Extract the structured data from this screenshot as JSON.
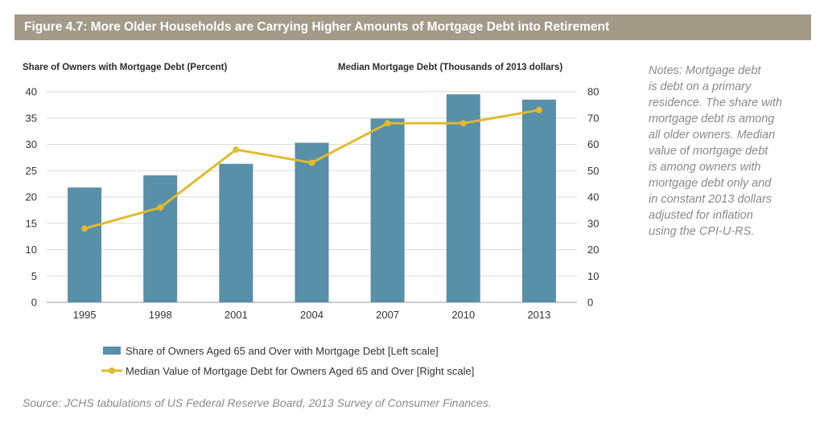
{
  "figure_title": "Figure 4.7: More Older Households are Carrying Higher Amounts of Mortgage Debt into Retirement",
  "left_axis_caption": "Share of  Owners with  Mortgage Debt (Percent)",
  "right_axis_caption": "Median Mortgage Debt (Thousands of 2013 dollars)",
  "notes": "Notes: Mortgage debt\nis debt on a primary\nresidence. The share with\nmortgage debt is among\nall older owners. Median\nvalue of mortgage debt\nis among owners with\nmortgage debt only and\nin constant 2013 dollars\nadjusted for inflation\nusing the CPI-U-RS.",
  "source": "Source: JCHS tabulations of US Federal Reserve Board, 2013 Survey of Consumer Finances.",
  "colors": {
    "bar": "#588fa9",
    "line": "#e0bb2d",
    "title_bg": "#a39a88"
  },
  "chart_data": {
    "type": "bar",
    "categories": [
      "1995",
      "1998",
      "2001",
      "2004",
      "2007",
      "2010",
      "2013"
    ],
    "series": [
      {
        "name": "Share of Owners Aged 65 and Over with Mortgage Debt [Left scale]",
        "type": "bar",
        "axis": "left",
        "values": [
          21.8,
          24.1,
          26.3,
          30.3,
          34.9,
          39.5,
          38.5
        ]
      },
      {
        "name": "Median Value of Mortgage Debt for Owners Aged 65 and Over [Right scale]",
        "type": "line",
        "axis": "right",
        "values": [
          28,
          36,
          58,
          53,
          68,
          68,
          73
        ]
      }
    ],
    "left_axis": {
      "ylim": [
        0,
        40
      ],
      "ticks": [
        "0",
        "5",
        "10",
        "15",
        "20",
        "25",
        "30",
        "35",
        "40"
      ]
    },
    "right_axis": {
      "ylim": [
        0,
        80
      ],
      "ticks": [
        "0",
        "10",
        "20",
        "30",
        "40",
        "50",
        "60",
        "70",
        "80"
      ]
    },
    "grid": true,
    "legend_position": "bottom-center"
  }
}
